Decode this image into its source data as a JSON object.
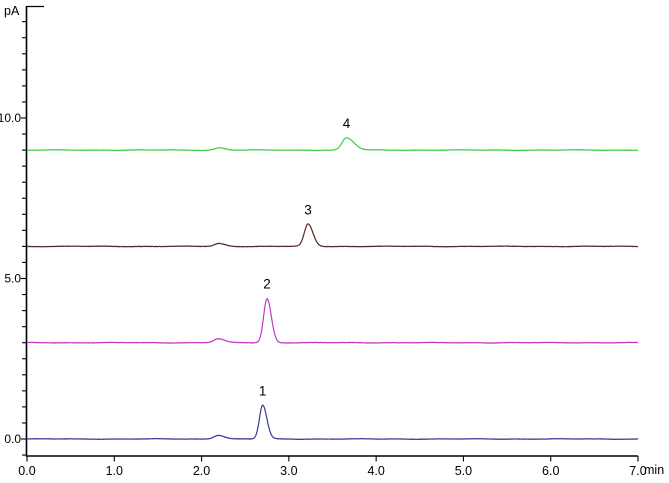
{
  "chart_data": {
    "type": "line",
    "chart_kind": "chromatogram-overlay",
    "title": "",
    "ylabel": "pA",
    "xlabel": "min",
    "x_axis": {
      "min": 0.0,
      "max": 7.0,
      "tick_step": 1.0,
      "tick_labels": [
        "0.0",
        "1.0",
        "2.0",
        "3.0",
        "4.0",
        "5.0",
        "6.0",
        "7.0"
      ],
      "unit_label": "min"
    },
    "y_axis": {
      "unit_label": "pA",
      "labeled_ticks": [
        {
          "value": 0.0,
          "label": "0.0"
        },
        {
          "value": 5.0,
          "label": "5.0"
        },
        {
          "value": 10.0,
          "label": "10.0"
        }
      ],
      "minor_tick_step": 0.5,
      "shown_min": -0.5,
      "shown_max": 13.0
    },
    "noise_pA": 0.006,
    "series": [
      {
        "name": "trace-1-blue",
        "color": "#3a3a9e",
        "baseline_pA": 0.0,
        "peaks": [
          {
            "label": "",
            "retention_min": 2.19,
            "height_pA": 0.12,
            "sigma_min": 0.05,
            "tail_ratio": 1.4
          },
          {
            "label": "1",
            "retention_min": 2.7,
            "height_pA": 1.05,
            "sigma_min": 0.037,
            "tail_ratio": 1.3
          }
        ]
      },
      {
        "name": "trace-2-magenta",
        "color": "#c23ac2",
        "baseline_pA": 3.0,
        "peaks": [
          {
            "label": "",
            "retention_min": 2.19,
            "height_pA": 0.12,
            "sigma_min": 0.05,
            "tail_ratio": 1.4
          },
          {
            "label": "2",
            "retention_min": 2.75,
            "height_pA": 1.37,
            "sigma_min": 0.039,
            "tail_ratio": 1.25
          }
        ]
      },
      {
        "name": "trace-3-darkred",
        "color": "#5a2828",
        "baseline_pA": 6.0,
        "peaks": [
          {
            "label": "",
            "retention_min": 2.2,
            "height_pA": 0.09,
            "sigma_min": 0.05,
            "tail_ratio": 1.4
          },
          {
            "label": "3",
            "retention_min": 3.22,
            "height_pA": 0.69,
            "sigma_min": 0.043,
            "tail_ratio": 1.3
          }
        ]
      },
      {
        "name": "trace-4-green",
        "color": "#44cc44",
        "baseline_pA": 9.0,
        "peaks": [
          {
            "label": "",
            "retention_min": 2.2,
            "height_pA": 0.07,
            "sigma_min": 0.05,
            "tail_ratio": 1.4
          },
          {
            "label": "4",
            "retention_min": 3.66,
            "height_pA": 0.38,
            "sigma_min": 0.05,
            "tail_ratio": 1.7
          }
        ]
      }
    ]
  }
}
